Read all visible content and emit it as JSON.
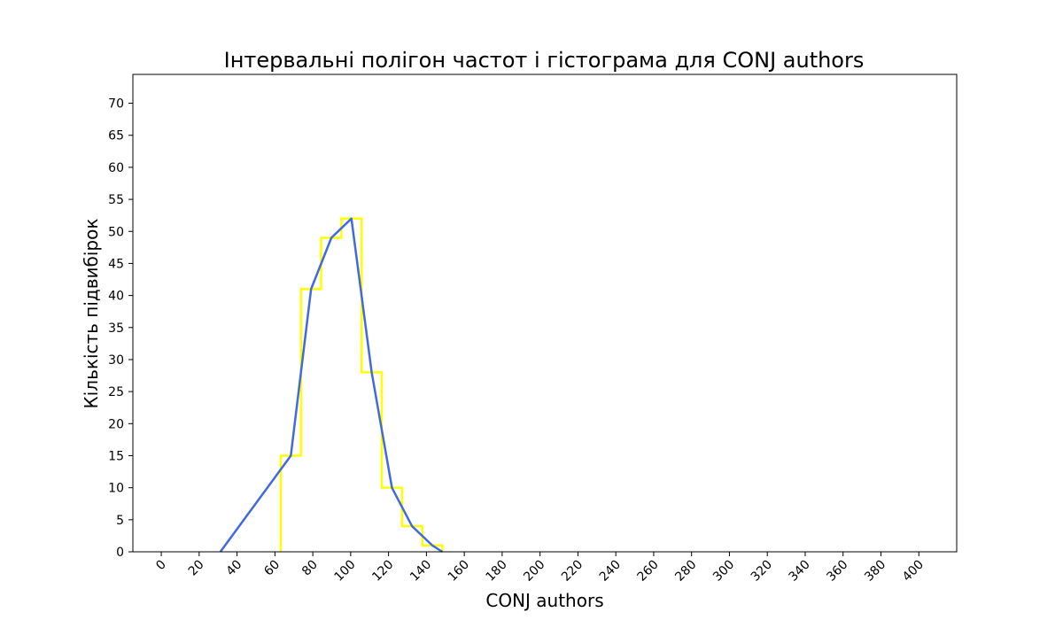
{
  "chart_data": {
    "type": "line",
    "title": "Інтервальні полігон частот і гістограма для CONJ authors",
    "xlabel": "CONJ authors",
    "ylabel": "Кількість підвибірок",
    "xlim": [
      -15,
      420
    ],
    "ylim": [
      0,
      74.5
    ],
    "xticks": [
      0,
      20,
      40,
      60,
      80,
      100,
      120,
      140,
      160,
      180,
      200,
      220,
      240,
      260,
      280,
      300,
      320,
      340,
      360,
      380,
      400
    ],
    "yticks": [
      0,
      5,
      10,
      15,
      20,
      25,
      30,
      35,
      40,
      45,
      50,
      55,
      60,
      65,
      70
    ],
    "histogram": {
      "color": "#ffff00",
      "bins": [
        {
          "x0": 63.1,
          "x1": 73.8,
          "count": 15
        },
        {
          "x0": 73.8,
          "x1": 84.4,
          "count": 41
        },
        {
          "x0": 84.4,
          "x1": 95.1,
          "count": 49
        },
        {
          "x0": 95.1,
          "x1": 105.8,
          "count": 52
        },
        {
          "x0": 105.8,
          "x1": 116.4,
          "count": 28
        },
        {
          "x0": 116.4,
          "x1": 127.1,
          "count": 10
        },
        {
          "x0": 127.1,
          "x1": 137.8,
          "count": 4
        },
        {
          "x0": 137.8,
          "x1": 148.4,
          "count": 1
        }
      ]
    },
    "polygon": {
      "color": "#4169e1",
      "x": [
        31.2,
        68.4,
        79.1,
        89.8,
        100.4,
        111.1,
        121.8,
        132.4,
        143.1,
        148.4
      ],
      "y": [
        0,
        15,
        41,
        49,
        52,
        28,
        10,
        4,
        1,
        0
      ]
    }
  }
}
